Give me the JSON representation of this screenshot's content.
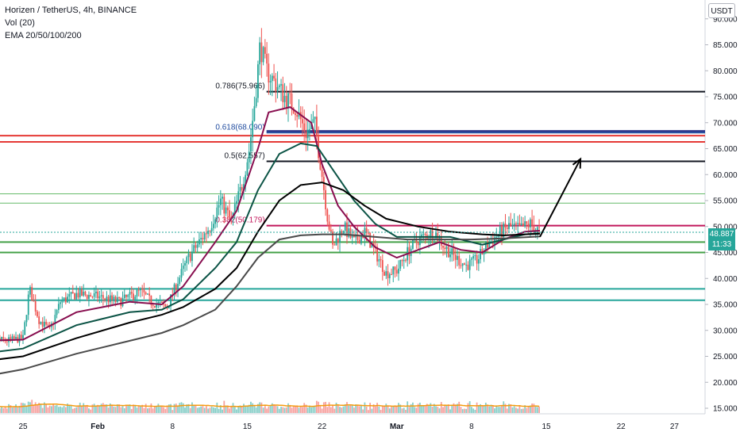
{
  "legend": {
    "symbol": "Horizen / TetherUS, 4h, BINANCE",
    "volume": "Vol (20)",
    "ema": "EMA 20/50/100/200"
  },
  "currency_button": "USDT",
  "last_price": {
    "value": "48.887",
    "countdown": "11:33",
    "color": "#26a69a"
  },
  "chart_data": {
    "type": "candlestick",
    "title": "Horizen / TetherUS, 4h, BINANCE",
    "y_axis_ticks": [
      "90.000",
      "85.000",
      "80.000",
      "75.000",
      "70.000",
      "65.000",
      "60.000",
      "55.000",
      "50.000",
      "45.000",
      "40.000",
      "35.000",
      "30.000",
      "25.000",
      "20.000",
      "15.000"
    ],
    "y_tick_values": [
      90,
      85,
      80,
      75,
      70,
      65,
      60,
      55,
      50,
      45,
      40,
      35,
      30,
      25,
      20,
      15
    ],
    "ylim": [
      14.2,
      91.2
    ],
    "x_axis_ticks": [
      "25",
      "Feb",
      "8",
      "15",
      "22",
      "Mar",
      "8",
      "15",
      "22",
      "27"
    ],
    "x_tick_days": [
      0,
      7,
      14,
      21,
      28,
      35,
      42,
      49,
      56,
      61
    ],
    "xlim_days": [
      -4.1,
      62.6
    ],
    "x_unit": "days from Jan 25",
    "price_path": [
      [
        -4,
        28.5
      ],
      [
        -1.5,
        28.0
      ],
      [
        0,
        28.5
      ],
      [
        0.6,
        38.0
      ],
      [
        1.5,
        32.0
      ],
      [
        2.5,
        30.0
      ],
      [
        3.5,
        35.5
      ],
      [
        5,
        37.0
      ],
      [
        7,
        36.5
      ],
      [
        9,
        35.5
      ],
      [
        11,
        37.5
      ],
      [
        12,
        35.5
      ],
      [
        13.5,
        34.5
      ],
      [
        14.5,
        39.5
      ],
      [
        15.5,
        44.0
      ],
      [
        17.5,
        50.0
      ],
      [
        18.5,
        55.0
      ],
      [
        19.5,
        51.0
      ],
      [
        20.5,
        58.0
      ],
      [
        21.2,
        65.0
      ],
      [
        21.8,
        76.0
      ],
      [
        22.2,
        85.0
      ],
      [
        22.8,
        80.0
      ],
      [
        23.5,
        78.0
      ],
      [
        24.5,
        75.0
      ],
      [
        25.5,
        73.0
      ],
      [
        26.5,
        68.0
      ],
      [
        27.3,
        70.0
      ],
      [
        28,
        60.0
      ],
      [
        28.5,
        52.0
      ],
      [
        29,
        46.0
      ],
      [
        30,
        50.0
      ],
      [
        31,
        47.0
      ],
      [
        32,
        49.0
      ],
      [
        33,
        45.0
      ],
      [
        34,
        41.0
      ],
      [
        35,
        41.5
      ],
      [
        36,
        45.0
      ],
      [
        37,
        47.5
      ],
      [
        38.5,
        49.0
      ],
      [
        39.5,
        46.0
      ],
      [
        40.5,
        44.0
      ],
      [
        41.5,
        42.5
      ],
      [
        42.5,
        43.5
      ],
      [
        43.5,
        46.5
      ],
      [
        44.5,
        48.5
      ],
      [
        45.5,
        50.0
      ],
      [
        46.5,
        49.5
      ],
      [
        47.5,
        50.5
      ],
      [
        48.4,
        48.9
      ]
    ],
    "ema_lines": [
      {
        "name": "EMA 20",
        "color": "#880e4f",
        "points": [
          [
            -4,
            28.0
          ],
          [
            0,
            28.2
          ],
          [
            5,
            33.5
          ],
          [
            10,
            35.5
          ],
          [
            13,
            35.0
          ],
          [
            15,
            38.5
          ],
          [
            18,
            47.0
          ],
          [
            20,
            53.0
          ],
          [
            22,
            65.0
          ],
          [
            23,
            72.0
          ],
          [
            25,
            73.0
          ],
          [
            27,
            70.0
          ],
          [
            28,
            62.0
          ],
          [
            29.5,
            54.0
          ],
          [
            31,
            50.0
          ],
          [
            33,
            46.0
          ],
          [
            35,
            44.0
          ],
          [
            37,
            45.5
          ],
          [
            39,
            47.0
          ],
          [
            41,
            45.5
          ],
          [
            43,
            45.0
          ],
          [
            45,
            47.5
          ],
          [
            47,
            49.0
          ],
          [
            48.4,
            49.2
          ]
        ]
      },
      {
        "name": "EMA 50",
        "color": "#0b5345",
        "points": [
          [
            -4,
            25.5
          ],
          [
            0,
            26.5
          ],
          [
            5,
            31.0
          ],
          [
            10,
            33.5
          ],
          [
            13,
            34.0
          ],
          [
            15,
            36.0
          ],
          [
            18,
            42.0
          ],
          [
            20,
            47.0
          ],
          [
            22,
            57.0
          ],
          [
            24,
            64.0
          ],
          [
            26,
            66.0
          ],
          [
            27.5,
            65.5
          ],
          [
            29,
            61.0
          ],
          [
            31,
            55.0
          ],
          [
            33,
            50.5
          ],
          [
            35,
            48.0
          ],
          [
            37,
            48.0
          ],
          [
            40,
            48.0
          ],
          [
            43,
            46.5
          ],
          [
            45,
            47.5
          ],
          [
            47,
            48.5
          ],
          [
            48.4,
            48.7
          ]
        ]
      },
      {
        "name": "EMA 100",
        "color": "#000000",
        "points": [
          [
            -4,
            24.0
          ],
          [
            0,
            25.0
          ],
          [
            5,
            28.5
          ],
          [
            10,
            31.5
          ],
          [
            13,
            33.0
          ],
          [
            15,
            34.5
          ],
          [
            18,
            38.0
          ],
          [
            20,
            42.0
          ],
          [
            22,
            49.0
          ],
          [
            24,
            55.0
          ],
          [
            26,
            58.0
          ],
          [
            28,
            58.5
          ],
          [
            30,
            57.0
          ],
          [
            32,
            54.0
          ],
          [
            34,
            51.5
          ],
          [
            37,
            50.0
          ],
          [
            40,
            49.0
          ],
          [
            43,
            48.5
          ],
          [
            45,
            48.3
          ],
          [
            47,
            48.5
          ],
          [
            48.4,
            48.6
          ]
        ]
      },
      {
        "name": "EMA 200",
        "color": "#4a4a4a",
        "points": [
          [
            -4,
            21.0
          ],
          [
            0,
            22.5
          ],
          [
            5,
            25.5
          ],
          [
            10,
            28.0
          ],
          [
            13,
            29.5
          ],
          [
            15,
            31.0
          ],
          [
            18,
            34.0
          ],
          [
            20,
            38.5
          ],
          [
            22,
            44.0
          ],
          [
            24,
            47.5
          ],
          [
            26,
            48.3
          ],
          [
            28,
            48.5
          ],
          [
            30,
            48.5
          ],
          [
            33,
            48.0
          ],
          [
            36,
            47.5
          ],
          [
            39,
            47.5
          ],
          [
            42,
            47.5
          ],
          [
            45,
            47.7
          ],
          [
            48.4,
            48.1
          ]
        ]
      }
    ],
    "fibonacci_levels": [
      {
        "label": "0.786(75.966)",
        "value": 75.966,
        "color": "#131722",
        "from_day": 22.8
      },
      {
        "label": "0.618(68.090)",
        "value": 68.09,
        "color": "#1e4a9e",
        "from_day": 22.8
      },
      {
        "label": "0.5(62.557)",
        "value": 62.557,
        "color": "#131722",
        "from_day": 22.8
      },
      {
        "label": "0.382(50.179)",
        "value": 50.179,
        "color": "#c2185b",
        "from_day": 22.8
      }
    ],
    "horizontal_lines": [
      {
        "value": 67.5,
        "color": "#e53935",
        "width": 2
      },
      {
        "value": 66.3,
        "color": "#e53935",
        "width": 2
      },
      {
        "value": 56.3,
        "color": "#66bb6a",
        "width": 1
      },
      {
        "value": 54.5,
        "color": "#66bb6a",
        "width": 1
      },
      {
        "value": 47.0,
        "color": "#43a047",
        "width": 2
      },
      {
        "value": 45.0,
        "color": "#43a047",
        "width": 2
      },
      {
        "value": 38.0,
        "color": "#26a69a",
        "width": 2
      },
      {
        "value": 35.8,
        "color": "#26a69a",
        "width": 2
      },
      {
        "value": 68.4,
        "color": "#1a237e",
        "width": 2,
        "from_day": 22.8
      }
    ],
    "projection_arrow": {
      "points": [
        [
          48.4,
          48.0
        ],
        [
          52.2,
          63.0
        ]
      ],
      "color": "#000000"
    },
    "volume_color_up": "#26a69a",
    "volume_color_down": "#ef5350",
    "volume_ma_color": "#f39c12",
    "colors": {
      "up": "#26a69a",
      "down": "#ef5350"
    }
  }
}
